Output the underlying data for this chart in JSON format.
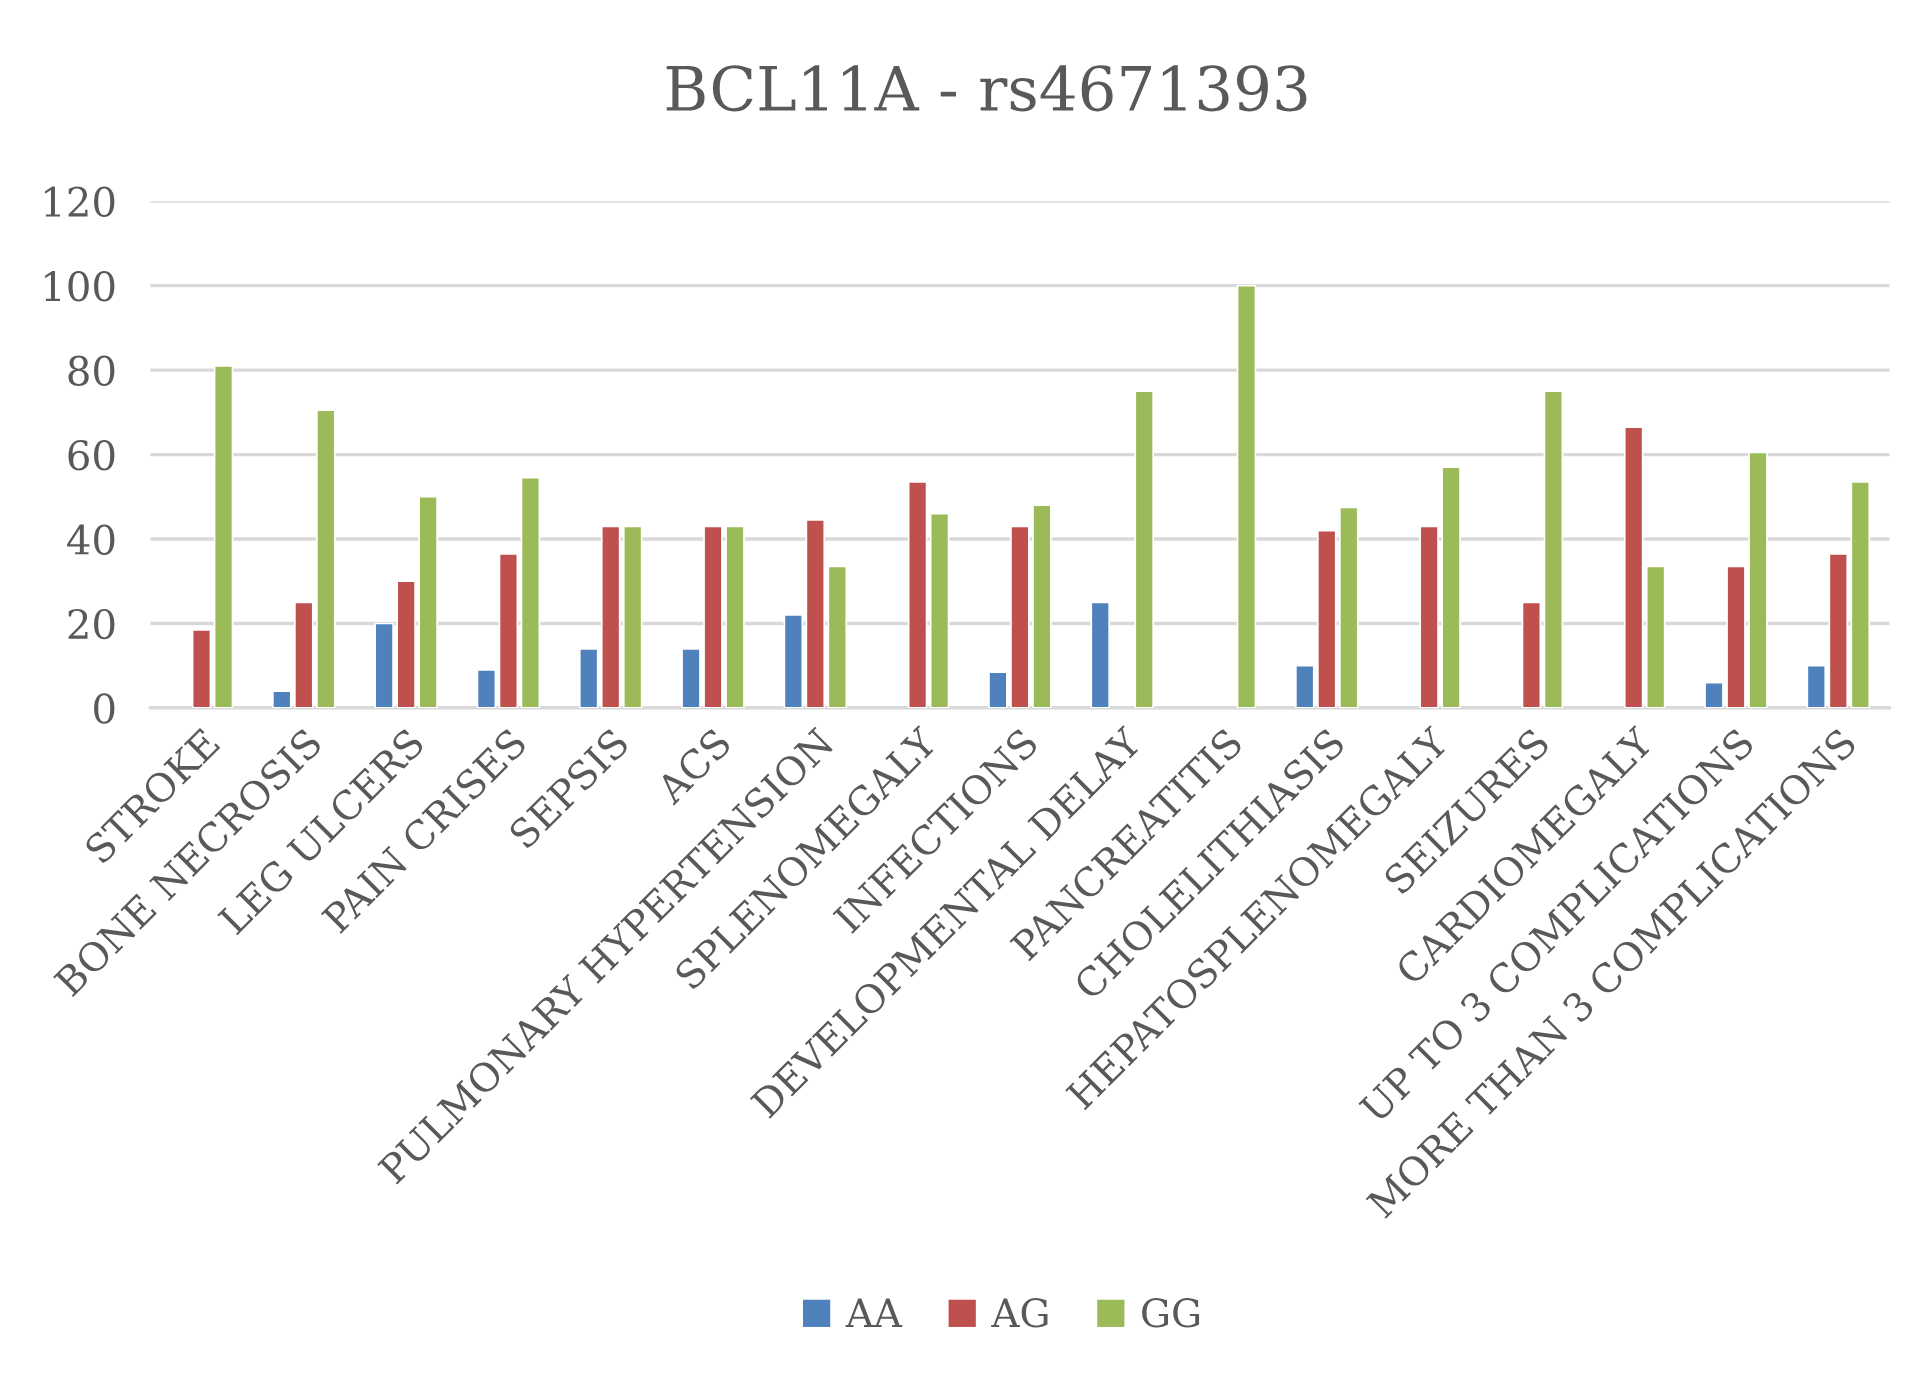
{
  "chart_data": {
    "type": "bar",
    "title": "BCL11A - rs4671393",
    "categories": [
      "STROKE",
      "BONE NECROSIS",
      "LEG ULCERS",
      "PAIN CRISES",
      "SEPSIS",
      "ACS",
      "PULMONARY HYPERTENSION",
      "SPLENOMEGALY",
      "INFECTIONS",
      "DEVELOPMENTAL DELAY",
      "PANCREATITIS",
      "CHOLELITHIASIS",
      "HEPATOSPLENOMEGALY",
      "SEIZURES",
      "CARDIOMEGALY",
      "UP TO 3 COMPLICATIONS",
      "MORE THAN 3 COMPLICATIONS"
    ],
    "series": [
      {
        "name": "AA",
        "color": "#4f81bd",
        "values": [
          null,
          4,
          20,
          9,
          14,
          14,
          22,
          null,
          8.5,
          25,
          null,
          10,
          null,
          null,
          null,
          6,
          10
        ]
      },
      {
        "name": "AG",
        "color": "#c0504d",
        "values": [
          18.5,
          25,
          30,
          36.5,
          43,
          43,
          44.5,
          53.5,
          43,
          null,
          null,
          42,
          43,
          25,
          66.5,
          33.5,
          36.5
        ]
      },
      {
        "name": "GG",
        "color": "#9bbb59",
        "values": [
          81,
          70.5,
          50,
          54.5,
          43,
          43,
          33.5,
          46,
          48,
          75,
          100,
          47.5,
          57,
          75,
          33.5,
          60.5,
          53.5
        ]
      }
    ],
    "ylim": [
      0,
      120
    ],
    "yticks": [
      0,
      20,
      40,
      60,
      80,
      100,
      120
    ],
    "grid": "y",
    "legend": "bottom"
  }
}
